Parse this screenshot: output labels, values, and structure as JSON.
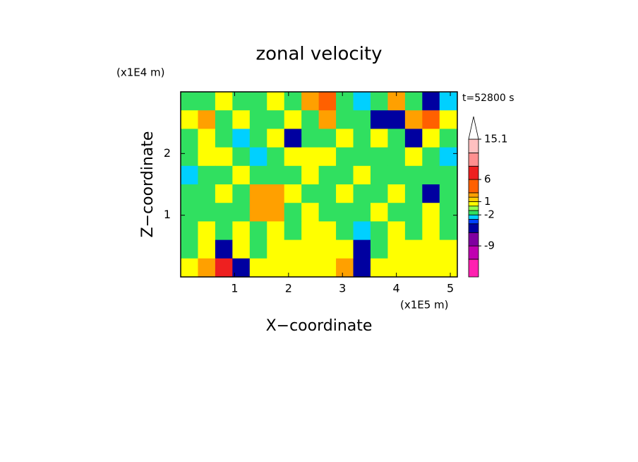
{
  "chart_data": {
    "type": "contour",
    "title": "zonal velocity",
    "y_unit": "(x1E4 m)",
    "x_unit": "(x1E5 m)",
    "time_label": "t=52800 s",
    "x_label": "X−coordinate",
    "y_label": "Z−coordinate",
    "xlim": [
      0,
      5.13
    ],
    "ylim": [
      0,
      3
    ],
    "xticks": [
      1,
      2,
      3,
      4,
      5
    ],
    "yticks": [
      1,
      2
    ],
    "x": [
      0.16,
      0.48,
      0.8,
      1.12,
      1.44,
      1.76,
      2.08,
      2.4,
      2.72,
      3.04,
      3.36,
      3.68,
      4.0,
      4.32,
      4.64,
      4.96
    ],
    "y": [
      2.85,
      2.55,
      2.25,
      1.95,
      1.65,
      1.35,
      1.05,
      0.75,
      0.45,
      0.15
    ],
    "z": [
      [
        -1.5,
        -1.5,
        0.5,
        -1.5,
        -1.5,
        0.5,
        -1.5,
        2.5,
        3,
        -1.5,
        -2.5,
        -1.5,
        2.5,
        -1.5,
        -5,
        -2.5
      ],
      [
        0.5,
        2.5,
        -1.5,
        0.5,
        -1.5,
        -1.5,
        0.5,
        -1.5,
        2.5,
        -1.5,
        -1.5,
        -5,
        -5,
        2.5,
        3,
        0.5
      ],
      [
        -1.5,
        0.5,
        -1.5,
        -2.5,
        -1.5,
        0.5,
        -5,
        -1.5,
        -1.5,
        0.5,
        -1.5,
        0.5,
        -1.5,
        -5,
        0.5,
        -1.5
      ],
      [
        -1.5,
        0.5,
        0.5,
        -1.5,
        -2.5,
        -1.5,
        0.5,
        0.5,
        0.5,
        -1.5,
        -1.5,
        -1.5,
        -1.5,
        0.5,
        -1.5,
        -2.5
      ],
      [
        -2.5,
        -1.5,
        -1.5,
        0.5,
        -1.5,
        -1.5,
        -1.5,
        0.5,
        -1.5,
        -1.5,
        0.5,
        -1.5,
        -1.5,
        -1.5,
        -1.5,
        -1.5
      ],
      [
        -1.5,
        -1.5,
        0.5,
        -1.5,
        2.5,
        2.5,
        0.5,
        -1.5,
        -1.5,
        0.5,
        -1.5,
        -1.5,
        0.5,
        -1.5,
        -5,
        -1.5
      ],
      [
        -1.5,
        -1.5,
        -1.5,
        -1.5,
        2.5,
        2.5,
        -1.5,
        0.5,
        -1.5,
        -1.5,
        -1.5,
        0.5,
        -1.5,
        -1.5,
        0.5,
        -1.5
      ],
      [
        -1.5,
        0.5,
        -1.5,
        0.5,
        -1.5,
        0.5,
        -1.5,
        0.5,
        0.5,
        -1.5,
        -2.5,
        -1.5,
        0.5,
        -1.5,
        0.5,
        -1.5
      ],
      [
        -1.5,
        0.5,
        -5,
        0.5,
        -1.5,
        0.5,
        0.5,
        0.5,
        0.5,
        0.5,
        -5,
        -1.5,
        0.5,
        0.5,
        0.5,
        0.5
      ],
      [
        0.5,
        2.5,
        7,
        -5,
        0.5,
        0.5,
        0.5,
        0.5,
        0.5,
        2.5,
        -5,
        0.5,
        0.5,
        0.5,
        0.5,
        0.5
      ]
    ],
    "levels": [
      -16,
      -12,
      -9,
      -6,
      -4,
      -3,
      -2,
      -1,
      0,
      1,
      2,
      3,
      6,
      9,
      12,
      15.1
    ],
    "colors": [
      "#ff20b0",
      "#c000b0",
      "#8000a0",
      "#0000a0",
      "#0040ff",
      "#00d0ff",
      "#30e060",
      "#90ff50",
      "#ffff00",
      "#ffcc00",
      "#ffa000",
      "#ff6000",
      "#ee2020",
      "#ff9090",
      "#ffc0c0"
    ],
    "extend_color": "#ffffff",
    "colorbar_ticks": [
      15.1,
      6,
      1,
      -2,
      -9
    ]
  }
}
